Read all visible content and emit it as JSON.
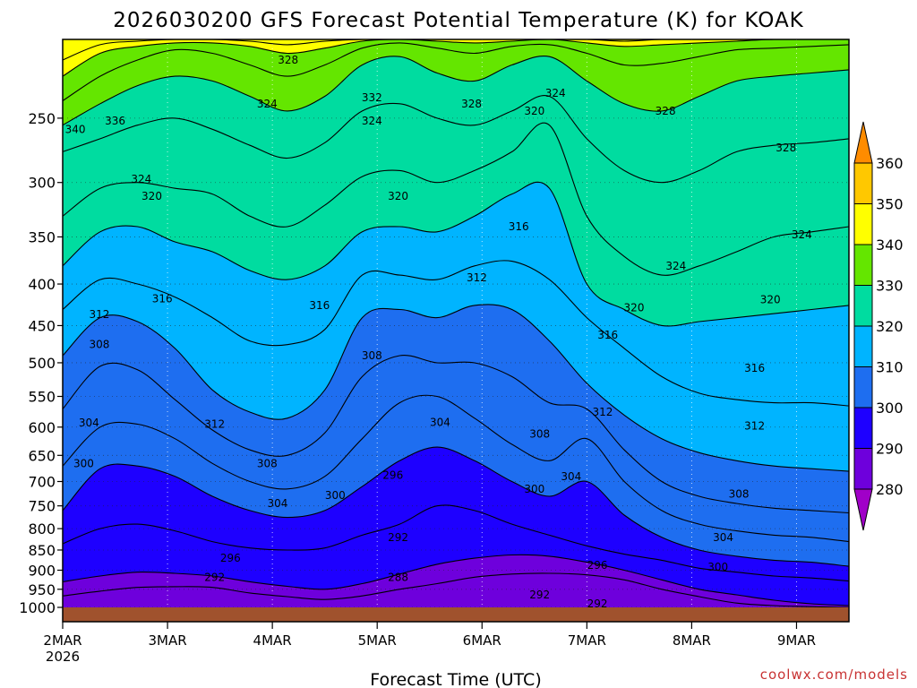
{
  "chart_data": {
    "type": "heatmap",
    "title": "2026030200 GFS Forecast Potential Temperature (K) for KOAK",
    "xlabel": "Forecast Time (UTC)",
    "ylabel": "",
    "x_ticks": [
      "2MAR",
      "3MAR",
      "4MAR",
      "5MAR",
      "6MAR",
      "7MAR",
      "8MAR",
      "9MAR"
    ],
    "x_year": "2026",
    "x_range_days": [
      0,
      7.5
    ],
    "y_ticks": [
      250,
      300,
      350,
      400,
      450,
      500,
      550,
      600,
      650,
      700,
      750,
      800,
      850,
      900,
      950,
      1000
    ],
    "y_range_hpa": [
      200,
      1000
    ],
    "y_log_scale": true,
    "y_reversed": true,
    "grid": true,
    "colorbar_levels": [
      280,
      290,
      300,
      310,
      320,
      330,
      340,
      350,
      360
    ],
    "colorbar_colors": [
      "#a000c8",
      "#6e00dc",
      "#1e00ff",
      "#1e6ef0",
      "#00b4ff",
      "#00dca0",
      "#64e600",
      "#ffff00",
      "#ffc800",
      "#ff8c00"
    ],
    "contour_interval_K": 4,
    "isentropes": [
      {
        "theta": 288,
        "p": [
          968,
          955,
          945,
          943,
          945,
          960,
          970,
          978,
          968,
          950,
          935,
          918,
          910,
          908,
          912,
          925,
          950,
          970,
          988,
          995,
          998,
          1000
        ]
      },
      {
        "theta": 292,
        "p": [
          930,
          915,
          905,
          908,
          915,
          930,
          942,
          950,
          935,
          910,
          885,
          870,
          862,
          865,
          880,
          900,
          925,
          950,
          965,
          980,
          990,
          995
        ]
      },
      {
        "theta": 296,
        "p": [
          835,
          800,
          790,
          805,
          830,
          845,
          850,
          845,
          815,
          790,
          750,
          760,
          790,
          815,
          840,
          860,
          875,
          895,
          905,
          915,
          920,
          928
        ]
      },
      {
        "theta": 300,
        "p": [
          760,
          675,
          670,
          690,
          730,
          760,
          775,
          760,
          710,
          660,
          635,
          660,
          700,
          730,
          700,
          770,
          820,
          850,
          865,
          875,
          880,
          890
        ]
      },
      {
        "theta": 304,
        "p": [
          670,
          600,
          595,
          620,
          665,
          700,
          715,
          690,
          620,
          560,
          550,
          585,
          630,
          660,
          620,
          700,
          760,
          790,
          805,
          815,
          820,
          830
        ]
      },
      {
        "theta": 308,
        "p": [
          570,
          505,
          510,
          555,
          605,
          640,
          650,
          610,
          520,
          490,
          500,
          500,
          520,
          560,
          570,
          640,
          700,
          730,
          745,
          755,
          760,
          765
        ]
      },
      {
        "theta": 312,
        "p": [
          490,
          440,
          445,
          480,
          540,
          575,
          585,
          540,
          440,
          430,
          440,
          425,
          430,
          470,
          530,
          580,
          620,
          645,
          660,
          670,
          675,
          680
        ]
      },
      {
        "theta": 316,
        "p": [
          430,
          395,
          400,
          415,
          440,
          470,
          475,
          455,
          390,
          390,
          395,
          380,
          375,
          395,
          440,
          480,
          520,
          545,
          555,
          560,
          560,
          565
        ]
      },
      {
        "theta": 320,
        "p": [
          380,
          345,
          340,
          355,
          365,
          385,
          395,
          380,
          345,
          340,
          345,
          330,
          310,
          305,
          400,
          430,
          450,
          445,
          440,
          435,
          430,
          425
        ]
      },
      {
        "theta": 324,
        "p": [
          330,
          305,
          300,
          305,
          310,
          330,
          340,
          320,
          295,
          290,
          300,
          290,
          275,
          255,
          330,
          370,
          390,
          380,
          365,
          350,
          345,
          340
        ]
      },
      {
        "theta": 328,
        "p": [
          275,
          265,
          255,
          250,
          258,
          270,
          280,
          268,
          245,
          240,
          250,
          255,
          245,
          235,
          265,
          290,
          300,
          290,
          275,
          270,
          268,
          265
        ]
      },
      {
        "theta": 332,
        "p": [
          255,
          240,
          228,
          222,
          225,
          235,
          245,
          235,
          215,
          210,
          220,
          225,
          215,
          210,
          225,
          240,
          245,
          235,
          225,
          222,
          220,
          218
        ]
      },
      {
        "theta": 336,
        "p": [
          238,
          222,
          212,
          206,
          208,
          215,
          222,
          215,
          205,
          202,
          205,
          208,
          204,
          203,
          208,
          215,
          214,
          210,
          206,
          205,
          204,
          203
        ]
      },
      {
        "theta": 340,
        "p": [
          222,
          208,
          204,
          202,
          202,
          204,
          208,
          205,
          201,
          200,
          201,
          202,
          201,
          200,
          202,
          204,
          203,
          202,
          201,
          200,
          200,
          200
        ]
      },
      {
        "theta": 344,
        "p": [
          212,
          203,
          201,
          200,
          200,
          201,
          203,
          201,
          200,
          200,
          200,
          200,
          200,
          200,
          200,
          201,
          200,
          200,
          200,
          200,
          200,
          200
        ]
      }
    ],
    "contour_labels": [
      {
        "text": "340",
        "day": 0.12,
        "p": 258
      },
      {
        "text": "336",
        "day": 0.5,
        "p": 252
      },
      {
        "text": "328",
        "day": 2.15,
        "p": 212
      },
      {
        "text": "324",
        "day": 1.95,
        "p": 240
      },
      {
        "text": "332",
        "day": 2.95,
        "p": 236
      },
      {
        "text": "324",
        "day": 2.95,
        "p": 252
      },
      {
        "text": "328",
        "day": 3.9,
        "p": 240
      },
      {
        "text": "324",
        "day": 4.7,
        "p": 233
      },
      {
        "text": "320",
        "day": 4.5,
        "p": 245
      },
      {
        "text": "328",
        "day": 5.75,
        "p": 245
      },
      {
        "text": "328",
        "day": 6.9,
        "p": 272
      },
      {
        "text": "324",
        "day": 0.75,
        "p": 297
      },
      {
        "text": "320",
        "day": 0.85,
        "p": 312
      },
      {
        "text": "320",
        "day": 3.2,
        "p": 312
      },
      {
        "text": "316",
        "day": 4.35,
        "p": 340
      },
      {
        "text": "324",
        "day": 7.05,
        "p": 348
      },
      {
        "text": "312",
        "day": 3.95,
        "p": 393
      },
      {
        "text": "324",
        "day": 5.85,
        "p": 380
      },
      {
        "text": "320",
        "day": 5.45,
        "p": 428
      },
      {
        "text": "320",
        "day": 6.75,
        "p": 418
      },
      {
        "text": "316",
        "day": 0.95,
        "p": 417
      },
      {
        "text": "316",
        "day": 2.45,
        "p": 425
      },
      {
        "text": "312",
        "day": 0.35,
        "p": 436
      },
      {
        "text": "316",
        "day": 5.2,
        "p": 462
      },
      {
        "text": "308",
        "day": 0.35,
        "p": 475
      },
      {
        "text": "308",
        "day": 2.95,
        "p": 490
      },
      {
        "text": "316",
        "day": 6.6,
        "p": 508
      },
      {
        "text": "312",
        "day": 5.15,
        "p": 575
      },
      {
        "text": "312",
        "day": 1.45,
        "p": 595
      },
      {
        "text": "312",
        "day": 6.6,
        "p": 598
      },
      {
        "text": "304",
        "day": 0.25,
        "p": 593
      },
      {
        "text": "304",
        "day": 3.6,
        "p": 592
      },
      {
        "text": "308",
        "day": 4.55,
        "p": 612
      },
      {
        "text": "300",
        "day": 0.2,
        "p": 665
      },
      {
        "text": "308",
        "day": 1.95,
        "p": 665
      },
      {
        "text": "296",
        "day": 3.15,
        "p": 688
      },
      {
        "text": "304",
        "day": 4.85,
        "p": 690
      },
      {
        "text": "300",
        "day": 4.5,
        "p": 715
      },
      {
        "text": "300",
        "day": 2.6,
        "p": 728
      },
      {
        "text": "304",
        "day": 2.05,
        "p": 745
      },
      {
        "text": "308",
        "day": 6.45,
        "p": 725
      },
      {
        "text": "292",
        "day": 3.2,
        "p": 820
      },
      {
        "text": "304",
        "day": 6.3,
        "p": 820
      },
      {
        "text": "296",
        "day": 1.6,
        "p": 870
      },
      {
        "text": "296",
        "day": 5.1,
        "p": 887
      },
      {
        "text": "300",
        "day": 6.25,
        "p": 892
      },
      {
        "text": "292",
        "day": 1.45,
        "p": 918
      },
      {
        "text": "288",
        "day": 3.2,
        "p": 918
      },
      {
        "text": "292",
        "day": 4.55,
        "p": 965
      },
      {
        "text": "292",
        "day": 5.1,
        "p": 1025
      }
    ],
    "ground_color": "#a0522d",
    "credit": "coolwx.com/models"
  }
}
